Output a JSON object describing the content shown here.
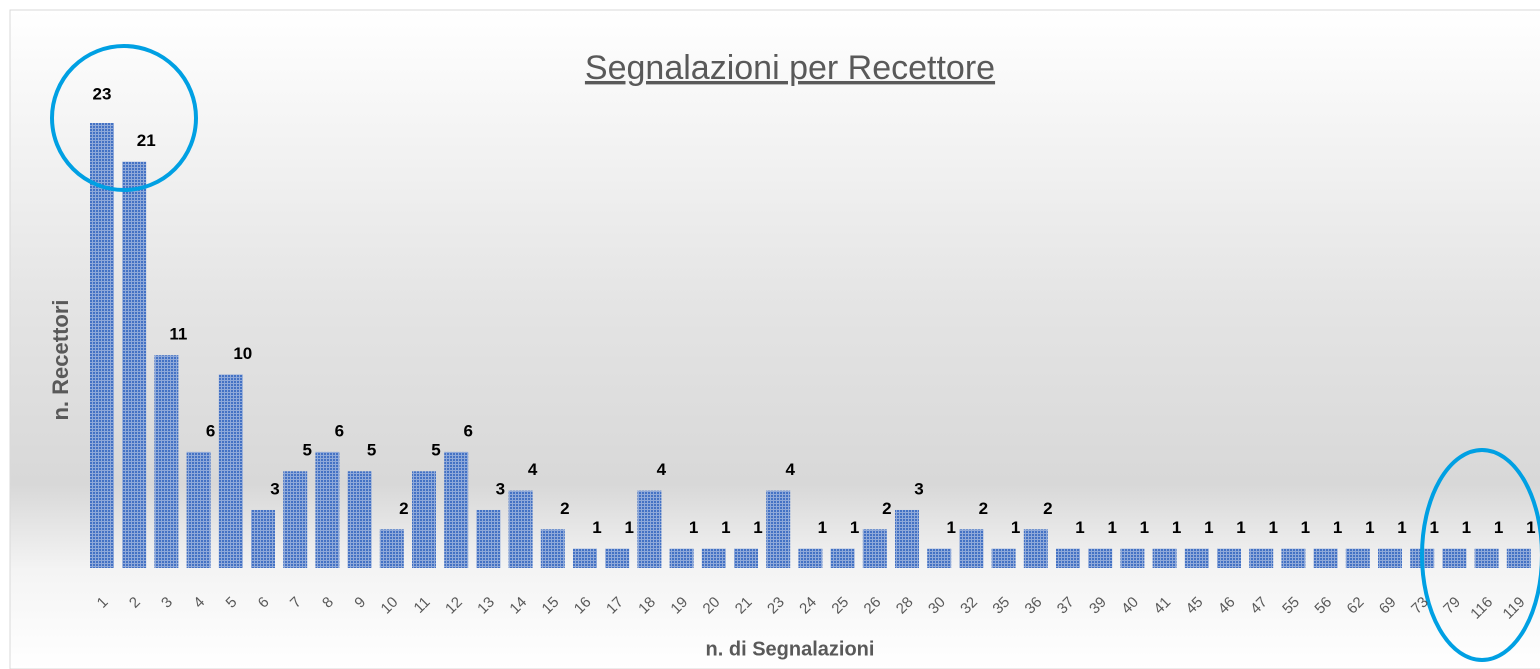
{
  "chart_data": {
    "type": "bar",
    "title": "Segnalazioni per Recettore",
    "xlabel": "n. di Segnalazioni",
    "ylabel": "n. Recettori",
    "color": "#4472c4",
    "categories": [
      "1",
      "2",
      "3",
      "4",
      "5",
      "6",
      "7",
      "8",
      "9",
      "10",
      "11",
      "12",
      "13",
      "14",
      "15",
      "16",
      "17",
      "18",
      "19",
      "20",
      "21",
      "23",
      "24",
      "25",
      "26",
      "28",
      "30",
      "32",
      "35",
      "36",
      "37",
      "39",
      "40",
      "41",
      "45",
      "46",
      "47",
      "55",
      "56",
      "62",
      "69",
      "73",
      "79",
      "116",
      "119"
    ],
    "values": [
      23,
      21,
      11,
      6,
      10,
      3,
      5,
      6,
      5,
      2,
      5,
      6,
      3,
      4,
      2,
      1,
      1,
      4,
      1,
      1,
      1,
      4,
      1,
      1,
      2,
      3,
      1,
      2,
      1,
      2,
      1,
      1,
      1,
      1,
      1,
      1,
      1,
      1,
      1,
      1,
      1,
      1,
      1,
      1,
      1
    ]
  }
}
